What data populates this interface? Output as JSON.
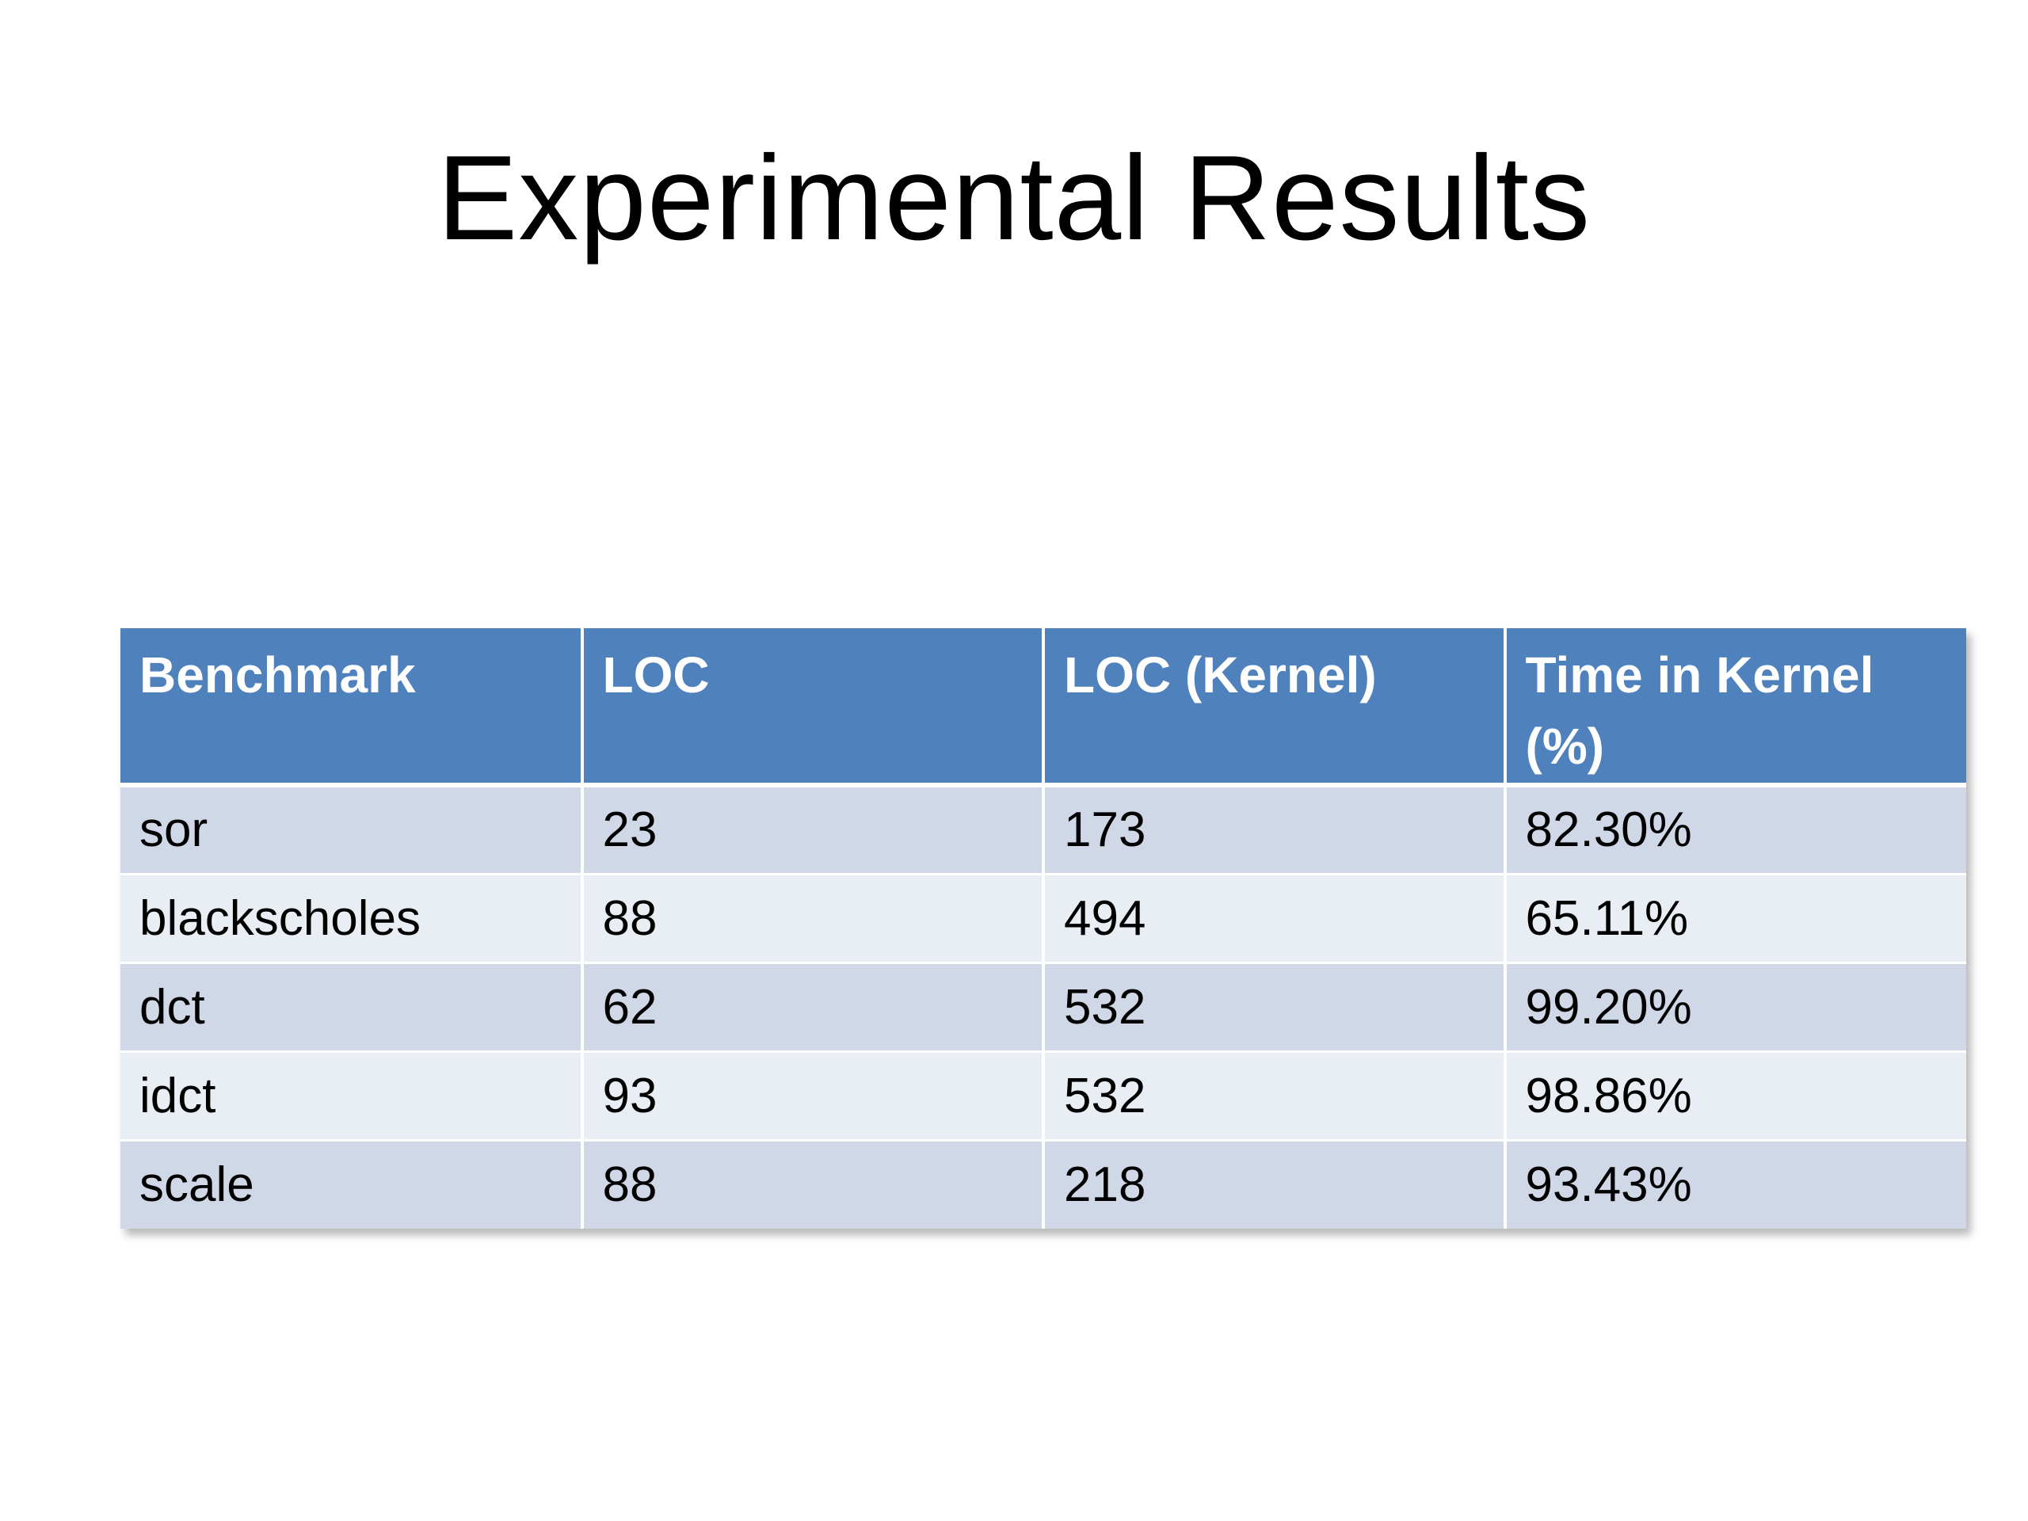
{
  "slide": {
    "title": "Experimental Results"
  },
  "table": {
    "headers": [
      "Benchmark",
      "LOC",
      "LOC (Kernel)",
      "Time in Kernel (%)"
    ],
    "rows": [
      [
        "sor",
        "23",
        "173",
        "82.30%"
      ],
      [
        "blackscholes",
        "88",
        "494",
        "65.11%"
      ],
      [
        "dct",
        "62",
        "532",
        "99.20%"
      ],
      [
        "idct",
        "93",
        "532",
        "98.86%"
      ],
      [
        "scale",
        "88",
        "218",
        "93.43%"
      ]
    ]
  },
  "colors": {
    "header_bg": "#4f81bd",
    "row_odd_bg": "#d0d8e8",
    "row_even_bg": "#e9edf4",
    "header_text": "#ffffff",
    "body_text": "#000000"
  }
}
